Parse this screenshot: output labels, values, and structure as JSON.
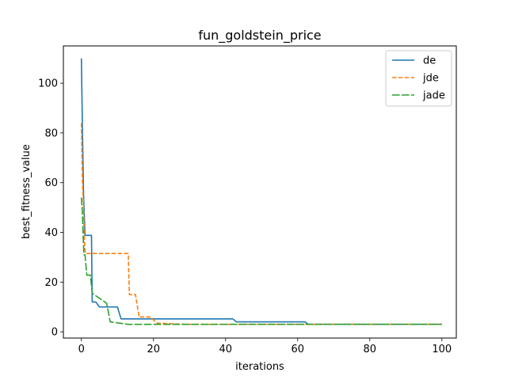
{
  "chart_data": {
    "type": "line",
    "title": "fun_goldstein_price",
    "xlabel": "iterations",
    "ylabel": "best_fitness_value",
    "xlim": [
      -5,
      104
    ],
    "ylim": [
      -2.5,
      115
    ],
    "xticks": [
      0,
      20,
      40,
      60,
      80,
      100
    ],
    "yticks": [
      0,
      20,
      40,
      60,
      80,
      100
    ],
    "grid": false,
    "legend_position": "top-right",
    "series": [
      {
        "name": "de",
        "color": "#1f77b4",
        "dash": "solid",
        "x": [
          0,
          0.3,
          0.6,
          1,
          1.5,
          2,
          2.8,
          3,
          4,
          5,
          6,
          10,
          11,
          42,
          43,
          62,
          63,
          100
        ],
        "y": [
          110,
          80,
          55,
          38.8,
          38.8,
          38.8,
          38.8,
          12,
          12,
          10,
          10,
          10,
          5.2,
          5.2,
          4,
          4,
          3,
          3
        ]
      },
      {
        "name": "jde",
        "color": "#ff7f0e",
        "dash": "dashed",
        "x": [
          0,
          0.3,
          0.6,
          0.8,
          1,
          1.2,
          2,
          13,
          13.3,
          14,
          15,
          16,
          19,
          21,
          29,
          100
        ],
        "y": [
          84,
          60,
          50,
          38,
          33,
          31.5,
          31.5,
          31.5,
          15,
          15,
          15,
          6,
          6,
          3.5,
          3,
          3
        ]
      },
      {
        "name": "jade",
        "color": "#2ca02c",
        "dash": "long-dashed",
        "x": [
          0,
          0.3,
          0.5,
          0.7,
          1,
          1.5,
          2,
          2.5,
          3,
          7,
          8,
          13,
          100
        ],
        "y": [
          54,
          47,
          38,
          31,
          31,
          22.8,
          22.8,
          22.8,
          15.5,
          11.5,
          4,
          3,
          3
        ]
      }
    ]
  }
}
